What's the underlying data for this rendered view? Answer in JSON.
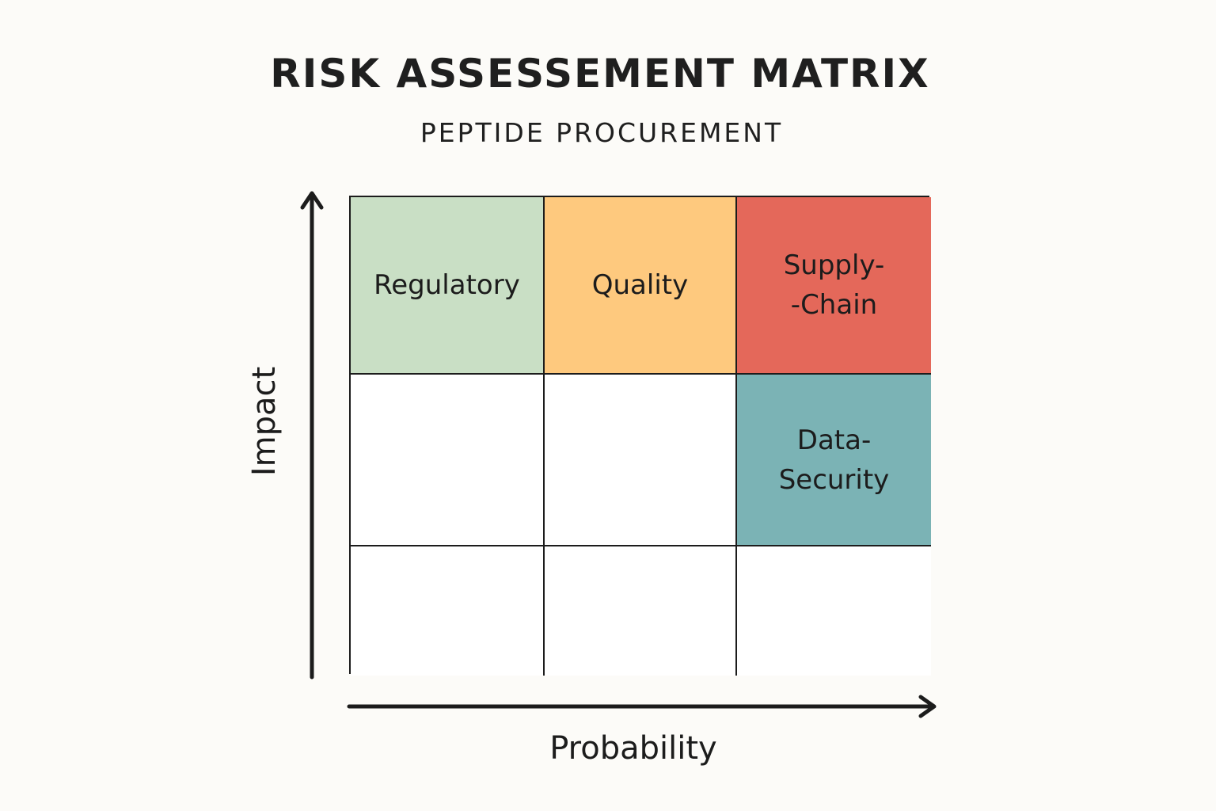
{
  "title": "RISK ASSESSEMENT MATRIX",
  "subtitle": "PEPTIDE PROCUREMENT",
  "axes": {
    "x_label": "Probability",
    "y_label": "Impact"
  },
  "colors": {
    "green": "#c9dfc5",
    "orange": "#fec97e",
    "red": "#e4685a",
    "teal": "#7bb3b5",
    "empty": "#ffffff",
    "line": "#1c1c1c"
  },
  "matrix": {
    "rows": [
      {
        "cells": [
          {
            "label": "Regulatory",
            "color": "#c9dfc5"
          },
          {
            "label": "Quality",
            "color": "#fec97e"
          },
          {
            "label": "Supply-\n-Chain",
            "color": "#e4685a"
          }
        ]
      },
      {
        "cells": [
          {
            "label": "",
            "color": "#ffffff"
          },
          {
            "label": "",
            "color": "#ffffff"
          },
          {
            "label": "Data-\nSecurity",
            "color": "#7bb3b5"
          }
        ]
      },
      {
        "cells": [
          {
            "label": "",
            "color": "#ffffff"
          },
          {
            "label": "",
            "color": "#ffffff"
          },
          {
            "label": "",
            "color": "#ffffff"
          }
        ]
      }
    ]
  }
}
